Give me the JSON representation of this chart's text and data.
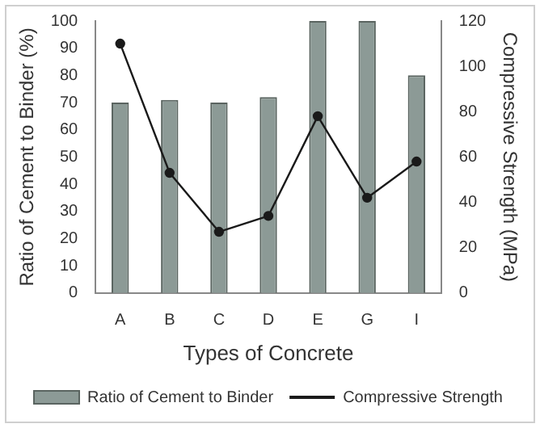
{
  "chart_data": {
    "type": "bar",
    "xlabel": "Types of Concrete",
    "ylabel": "Ratio of Cement to Binder (%)",
    "y2label": "Compressive Strength (MPa)",
    "categories": [
      "A",
      "B",
      "C",
      "D",
      "E",
      "G",
      "I"
    ],
    "series": [
      {
        "name": "Ratio of Cement to Binder",
        "color": "#8c9a96",
        "values": [
          70,
          71,
          70,
          72,
          100,
          100,
          80
        ]
      },
      {
        "name": "Compressive Strength",
        "type": "line",
        "axis": "y2",
        "color": "#1a1a1a",
        "values": [
          110,
          53,
          27,
          34,
          78,
          42,
          58
        ]
      }
    ],
    "ylim": [
      0,
      100
    ],
    "yticks": [
      0,
      10,
      20,
      30,
      40,
      50,
      60,
      70,
      80,
      90,
      100
    ],
    "y2lim": [
      0,
      120
    ],
    "y2ticks": [
      0,
      20,
      40,
      60,
      80,
      100,
      120
    ],
    "grid": false,
    "legend": "bottom",
    "marker": "circle",
    "line_style": "solid"
  }
}
